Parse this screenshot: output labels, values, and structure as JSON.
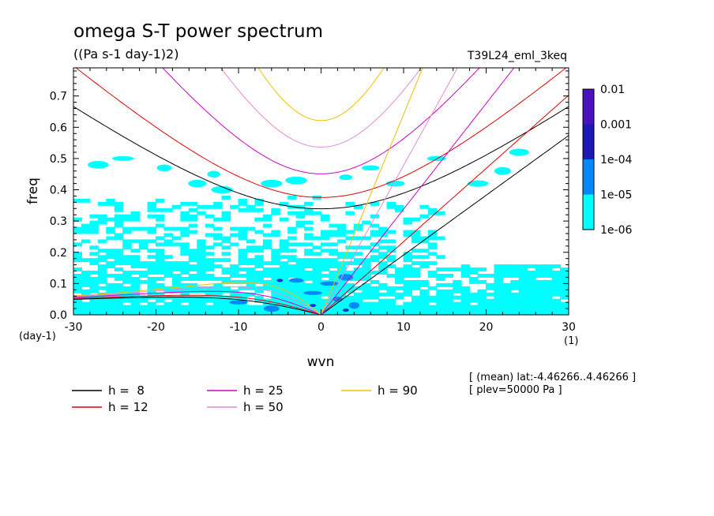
{
  "chart_data": {
    "type": "heatmap",
    "title": "omega S-T power spectrum",
    "subtitle": "((Pa s-1 day-1)2)",
    "run_label": "T39L24_eml_3keq",
    "xlabel": "wvn",
    "ylabel": "freq",
    "x_unit": "(1)",
    "y_unit": "(day-1)",
    "xlim": [
      -30,
      30
    ],
    "ylim": [
      0,
      0.79
    ],
    "x_ticks": [
      -30,
      -20,
      -10,
      0,
      10,
      20,
      30
    ],
    "x_tick_labels": [
      "-30",
      "-20",
      "-10",
      "0",
      "10",
      "20",
      "30"
    ],
    "y_ticks": [
      0,
      0.1,
      0.2,
      0.3,
      0.4,
      0.5,
      0.6,
      0.7
    ],
    "y_tick_labels": [
      "0.0",
      "0.1",
      "0.2",
      "0.3",
      "0.4",
      "0.5",
      "0.6",
      "0.7"
    ],
    "colorbar": {
      "levels": [
        "0.01",
        "0.001",
        "1e-04",
        "1e-05",
        "1e-06"
      ],
      "colors": [
        "#4b10c0",
        "#1c19b4",
        "#0033d8",
        "#0088ff",
        "#00ffff"
      ]
    },
    "dispersion_curves": [
      {
        "h": "8",
        "label": "h =  8",
        "color": "#000000"
      },
      {
        "h": "12",
        "label": "h = 12",
        "color": "#e00000"
      },
      {
        "h": "25",
        "label": "h = 25",
        "color": "#d000c8"
      },
      {
        "h": "50",
        "label": "h = 50",
        "color": "#e08cd8"
      },
      {
        "h": "90",
        "label": "h = 90",
        "color": "#f0c000"
      }
    ],
    "info_lines": [
      "[ (mean) lat:-4.46266..4.46266 ]",
      "[ plev=50000 Pa ]"
    ]
  }
}
